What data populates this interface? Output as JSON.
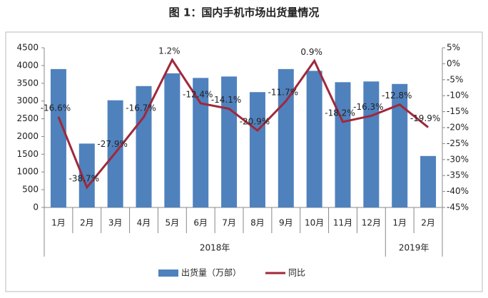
{
  "chart_data": {
    "type": "bar_line",
    "title": "图 1：国内手机市场出货量情况",
    "category_groups": [
      {
        "name": "2018年",
        "categories": [
          "1月",
          "2月",
          "3月",
          "4月",
          "5月",
          "6月",
          "7月",
          "8月",
          "9月",
          "10月",
          "11月",
          "12月"
        ]
      },
      {
        "name": "2019年",
        "categories": [
          "1月",
          "2月"
        ]
      }
    ],
    "series": [
      {
        "name": "出货量（万部）",
        "type": "bar",
        "color": "#4f81bd",
        "values": [
          3900,
          1800,
          3020,
          3420,
          3780,
          3650,
          3690,
          3250,
          3900,
          3850,
          3530,
          3550,
          3480,
          1450
        ]
      },
      {
        "name": "同比",
        "type": "line",
        "axis": "y2",
        "color": "#a0283a",
        "values": [
          -16.6,
          -38.7,
          -27.9,
          -16.7,
          1.2,
          -12.4,
          -14.1,
          -20.9,
          -11.7,
          0.9,
          -18.2,
          -16.3,
          -12.8,
          -19.9
        ],
        "value_labels": [
          "-16.6%",
          "-38.7%",
          "-27.9%",
          "-16.7%",
          "1.2%",
          "-12.4%",
          "-14.1%",
          "-20.9%",
          "-11.7%",
          "0.9%",
          "-18.2%",
          "-16.3%",
          "-12.8%",
          "-19.9%"
        ]
      }
    ],
    "ylim": [
      0,
      4500
    ],
    "yticks": [
      0,
      500,
      1000,
      1500,
      2000,
      2500,
      3000,
      3500,
      4000,
      4500
    ],
    "y2lim": [
      -45,
      5
    ],
    "y2ticks": [
      {
        "value": -45,
        "label": "-45%"
      },
      {
        "value": -40,
        "label": "-40%"
      },
      {
        "value": -35,
        "label": "-35%"
      },
      {
        "value": -30,
        "label": "-30%"
      },
      {
        "value": -25,
        "label": "-25%"
      },
      {
        "value": -20,
        "label": "-20%"
      },
      {
        "value": -15,
        "label": "-15%"
      },
      {
        "value": -10,
        "label": "-10%"
      },
      {
        "value": -5,
        "label": "-5%"
      },
      {
        "value": 0,
        "label": "0%"
      },
      {
        "value": 5,
        "label": "5%"
      }
    ],
    "legend": "bottom"
  }
}
